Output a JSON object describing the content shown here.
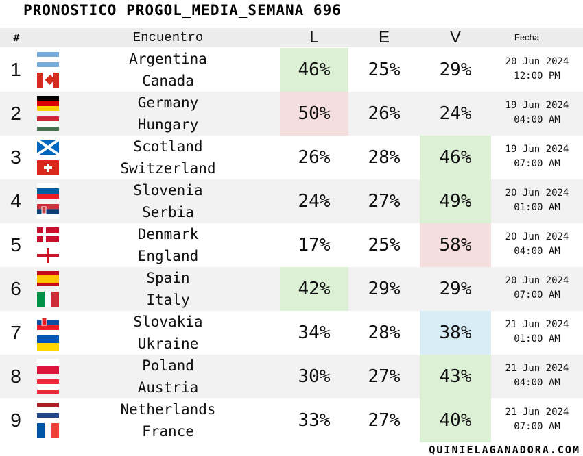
{
  "title": "PRONOSTICO PROGOL_MEDIA_SEMANA 696",
  "headers": {
    "num": "#",
    "match": "Encuentro",
    "l": "L",
    "e": "E",
    "v": "V",
    "date": "Fecha"
  },
  "rows": [
    {
      "num": "1",
      "home": "Argentina",
      "away": "Canada",
      "l": "46%",
      "e": "25%",
      "v": "29%",
      "date": "20 Jun 2024",
      "time": "12:00 PM",
      "highlight": "l",
      "hl_color": "green",
      "home_flag": "argentina",
      "away_flag": "canada"
    },
    {
      "num": "2",
      "home": "Germany",
      "away": "Hungary",
      "l": "50%",
      "e": "26%",
      "v": "24%",
      "date": "19 Jun 2024",
      "time": "04:00 AM",
      "highlight": "l",
      "hl_color": "red",
      "home_flag": "germany",
      "away_flag": "hungary"
    },
    {
      "num": "3",
      "home": "Scotland",
      "away": "Switzerland",
      "l": "26%",
      "e": "28%",
      "v": "46%",
      "date": "19 Jun 2024",
      "time": "07:00 AM",
      "highlight": "v",
      "hl_color": "green",
      "home_flag": "scotland",
      "away_flag": "switzerland"
    },
    {
      "num": "4",
      "home": "Slovenia",
      "away": "Serbia",
      "l": "24%",
      "e": "27%",
      "v": "49%",
      "date": "20 Jun 2024",
      "time": "01:00 AM",
      "highlight": "v",
      "hl_color": "green",
      "home_flag": "slovenia",
      "away_flag": "serbia"
    },
    {
      "num": "5",
      "home": "Denmark",
      "away": "England",
      "l": "17%",
      "e": "25%",
      "v": "58%",
      "date": "20 Jun 2024",
      "time": "04:00 AM",
      "highlight": "v",
      "hl_color": "red",
      "home_flag": "denmark",
      "away_flag": "england"
    },
    {
      "num": "6",
      "home": "Spain",
      "away": "Italy",
      "l": "42%",
      "e": "29%",
      "v": "29%",
      "date": "20 Jun 2024",
      "time": "07:00 AM",
      "highlight": "l",
      "hl_color": "green",
      "home_flag": "spain",
      "away_flag": "italy"
    },
    {
      "num": "7",
      "home": "Slovakia",
      "away": "Ukraine",
      "l": "34%",
      "e": "28%",
      "v": "38%",
      "date": "21 Jun 2024",
      "time": "01:00 AM",
      "highlight": "v",
      "hl_color": "blue",
      "home_flag": "slovakia",
      "away_flag": "ukraine"
    },
    {
      "num": "8",
      "home": "Poland",
      "away": "Austria",
      "l": "30%",
      "e": "27%",
      "v": "43%",
      "date": "21 Jun 2024",
      "time": "04:00 AM",
      "highlight": "v",
      "hl_color": "green",
      "home_flag": "poland",
      "away_flag": "austria"
    },
    {
      "num": "9",
      "home": "Netherlands",
      "away": "France",
      "l": "33%",
      "e": "27%",
      "v": "40%",
      "date": "21 Jun 2024",
      "time": "07:00 AM",
      "highlight": "v",
      "hl_color": "green",
      "home_flag": "netherlands",
      "away_flag": "france"
    }
  ],
  "colors": {
    "green": "#dcf0d6",
    "red": "#f5dede",
    "blue": "#d8ecf6"
  },
  "footer": "QUINIELAGANADORA.COM"
}
